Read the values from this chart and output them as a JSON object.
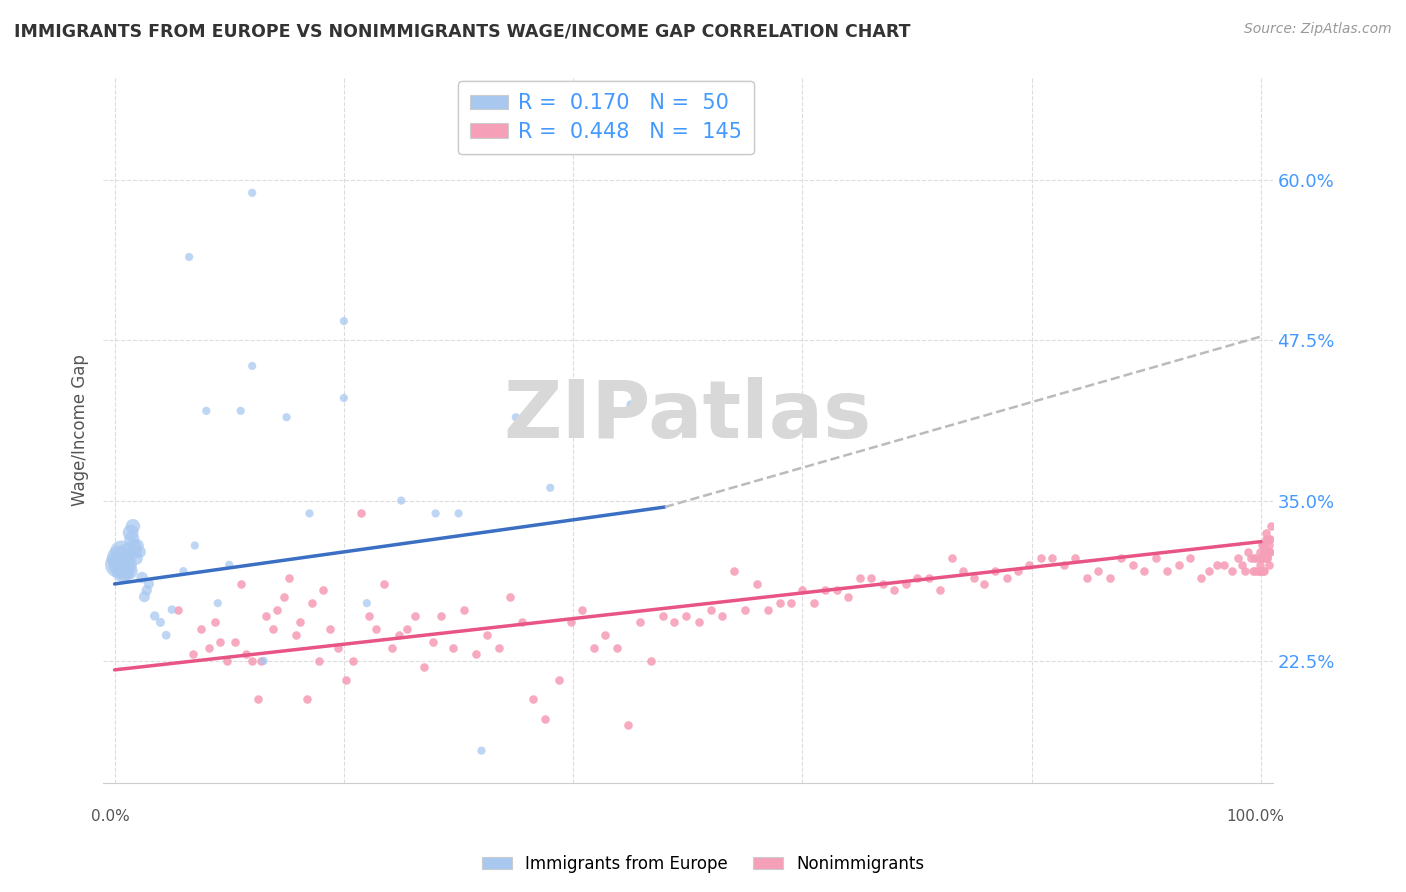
{
  "title": "IMMIGRANTS FROM EUROPE VS NONIMMIGRANTS WAGE/INCOME GAP CORRELATION CHART",
  "source": "Source: ZipAtlas.com",
  "ylabel": "Wage/Income Gap",
  "yticks": [
    0.225,
    0.35,
    0.475,
    0.6
  ],
  "ytick_labels": [
    "22.5%",
    "35.0%",
    "47.5%",
    "60.0%"
  ],
  "xlim": [
    -0.01,
    1.01
  ],
  "ylim": [
    0.13,
    0.68
  ],
  "legend_blue_R": "0.170",
  "legend_blue_N": "50",
  "legend_pink_R": "0.448",
  "legend_pink_N": "145",
  "blue_color": "#A8C8F0",
  "pink_color": "#F5A0B8",
  "blue_line_color": "#3A6FC4",
  "pink_line_color": "#E85585",
  "dash_color": "#BBBBBB",
  "watermark": "ZIPatlas",
  "watermark_color": "#D8D8D8",
  "grid_color": "#DDDDDD",
  "title_color": "#333333",
  "source_color": "#999999",
  "ylabel_color": "#555555",
  "tick_label_color": "#4499FF",
  "blue_x": [
    0.003,
    0.004,
    0.005,
    0.006,
    0.007,
    0.007,
    0.008,
    0.009,
    0.01,
    0.011,
    0.012,
    0.013,
    0.014,
    0.015,
    0.016,
    0.017,
    0.018,
    0.019,
    0.02,
    0.022,
    0.024,
    0.026,
    0.028,
    0.03,
    0.035,
    0.04,
    0.045,
    0.05,
    0.06,
    0.065,
    0.07,
    0.08,
    0.09,
    0.1,
    0.11,
    0.12,
    0.13,
    0.15,
    0.17,
    0.2,
    0.22,
    0.25,
    0.28,
    0.12,
    0.3,
    0.32,
    0.35,
    0.2,
    0.38,
    0.45
  ],
  "blue_y": [
    0.3,
    0.305,
    0.3,
    0.31,
    0.295,
    0.305,
    0.3,
    0.295,
    0.305,
    0.31,
    0.3,
    0.295,
    0.325,
    0.32,
    0.33,
    0.315,
    0.31,
    0.305,
    0.315,
    0.31,
    0.29,
    0.275,
    0.28,
    0.285,
    0.26,
    0.255,
    0.245,
    0.265,
    0.295,
    0.54,
    0.315,
    0.42,
    0.27,
    0.3,
    0.42,
    0.59,
    0.225,
    0.415,
    0.34,
    0.43,
    0.27,
    0.35,
    0.34,
    0.455,
    0.34,
    0.155,
    0.415,
    0.49,
    0.36,
    0.425
  ],
  "blue_size": [
    350,
    320,
    290,
    270,
    250,
    230,
    210,
    195,
    180,
    165,
    150,
    140,
    130,
    120,
    110,
    100,
    95,
    88,
    82,
    76,
    68,
    62,
    56,
    52,
    46,
    42,
    40,
    38,
    35,
    35,
    35,
    35,
    35,
    35,
    35,
    35,
    35,
    35,
    35,
    35,
    35,
    35,
    35,
    35,
    35,
    35,
    35,
    35,
    35,
    35
  ],
  "blue_line_x0": 0.0,
  "blue_line_x1": 0.48,
  "blue_line_y0": 0.285,
  "blue_line_y1": 0.345,
  "dash_line_x0": 0.48,
  "dash_line_x1": 1.0,
  "dash_line_y0": 0.345,
  "dash_line_y1": 0.478,
  "pink_line_x0": 0.0,
  "pink_line_x1": 1.0,
  "pink_line_y0": 0.218,
  "pink_line_y1": 0.318,
  "pink_x": [
    0.055,
    0.068,
    0.075,
    0.082,
    0.088,
    0.092,
    0.098,
    0.105,
    0.11,
    0.115,
    0.12,
    0.125,
    0.128,
    0.132,
    0.138,
    0.142,
    0.148,
    0.152,
    0.158,
    0.162,
    0.168,
    0.172,
    0.178,
    0.182,
    0.188,
    0.195,
    0.202,
    0.208,
    0.215,
    0.222,
    0.228,
    0.235,
    0.242,
    0.248,
    0.255,
    0.262,
    0.27,
    0.278,
    0.285,
    0.295,
    0.305,
    0.315,
    0.325,
    0.335,
    0.345,
    0.355,
    0.365,
    0.375,
    0.388,
    0.398,
    0.408,
    0.418,
    0.428,
    0.438,
    0.448,
    0.458,
    0.468,
    0.478,
    0.488,
    0.498,
    0.51,
    0.52,
    0.53,
    0.54,
    0.55,
    0.56,
    0.57,
    0.58,
    0.59,
    0.6,
    0.61,
    0.62,
    0.63,
    0.64,
    0.65,
    0.66,
    0.67,
    0.68,
    0.69,
    0.7,
    0.71,
    0.72,
    0.73,
    0.74,
    0.75,
    0.758,
    0.768,
    0.778,
    0.788,
    0.798,
    0.808,
    0.818,
    0.828,
    0.838,
    0.848,
    0.858,
    0.868,
    0.878,
    0.888,
    0.898,
    0.908,
    0.918,
    0.928,
    0.938,
    0.948,
    0.955,
    0.962,
    0.968,
    0.975,
    0.98,
    0.983,
    0.986,
    0.989,
    0.991,
    0.993,
    0.994,
    0.995,
    0.996,
    0.997,
    0.998,
    0.999,
    0.999,
    1.0,
    1.0,
    1.001,
    1.001,
    1.002,
    1.002,
    1.003,
    1.003,
    1.003,
    1.004,
    1.004,
    1.004,
    1.005,
    1.005,
    1.005,
    1.006,
    1.006,
    1.007,
    1.007,
    1.007,
    1.008,
    1.008,
    1.009
  ],
  "pink_y": [
    0.265,
    0.23,
    0.25,
    0.235,
    0.255,
    0.24,
    0.225,
    0.24,
    0.285,
    0.23,
    0.225,
    0.195,
    0.225,
    0.26,
    0.25,
    0.265,
    0.275,
    0.29,
    0.245,
    0.255,
    0.195,
    0.27,
    0.225,
    0.28,
    0.25,
    0.235,
    0.21,
    0.225,
    0.34,
    0.26,
    0.25,
    0.285,
    0.235,
    0.245,
    0.25,
    0.26,
    0.22,
    0.24,
    0.26,
    0.235,
    0.265,
    0.23,
    0.245,
    0.235,
    0.275,
    0.255,
    0.195,
    0.18,
    0.21,
    0.255,
    0.265,
    0.235,
    0.245,
    0.235,
    0.175,
    0.255,
    0.225,
    0.26,
    0.255,
    0.26,
    0.255,
    0.265,
    0.26,
    0.295,
    0.265,
    0.285,
    0.265,
    0.27,
    0.27,
    0.28,
    0.27,
    0.28,
    0.28,
    0.275,
    0.29,
    0.29,
    0.285,
    0.28,
    0.285,
    0.29,
    0.29,
    0.28,
    0.305,
    0.295,
    0.29,
    0.285,
    0.295,
    0.29,
    0.295,
    0.3,
    0.305,
    0.305,
    0.3,
    0.305,
    0.29,
    0.295,
    0.29,
    0.305,
    0.3,
    0.295,
    0.305,
    0.295,
    0.3,
    0.305,
    0.29,
    0.295,
    0.3,
    0.3,
    0.295,
    0.305,
    0.3,
    0.295,
    0.31,
    0.305,
    0.295,
    0.305,
    0.295,
    0.305,
    0.295,
    0.295,
    0.3,
    0.31,
    0.305,
    0.295,
    0.315,
    0.305,
    0.305,
    0.295,
    0.315,
    0.31,
    0.295,
    0.32,
    0.325,
    0.305,
    0.305,
    0.31,
    0.305,
    0.31,
    0.32,
    0.315,
    0.3,
    0.31,
    0.32,
    0.31,
    0.33
  ]
}
